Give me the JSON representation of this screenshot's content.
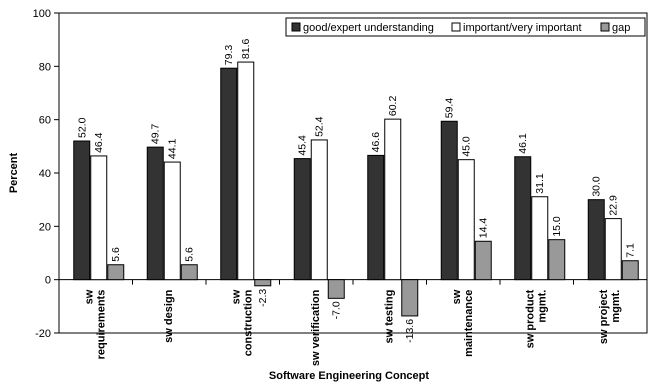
{
  "chart_data": {
    "type": "bar",
    "title": "",
    "xlabel": "Software Engineering Concept",
    "ylabel": "Percent",
    "ylim": [
      -20,
      100
    ],
    "yticks": [
      -20,
      0,
      20,
      40,
      60,
      80,
      100
    ],
    "grid": false,
    "legend_position": "top-right",
    "categories": [
      [
        "sw",
        "requirements"
      ],
      [
        "sw design"
      ],
      [
        "sw",
        "construction"
      ],
      [
        "sw verification"
      ],
      [
        "sw testing"
      ],
      [
        "sw",
        "maintenance"
      ],
      [
        "sw product",
        "mgmt."
      ],
      [
        "sw project",
        "mgmt."
      ]
    ],
    "series": [
      {
        "name": "good/expert understanding",
        "color": "#333333",
        "values": [
          52.0,
          49.7,
          79.3,
          45.4,
          46.6,
          59.4,
          46.1,
          30.0
        ]
      },
      {
        "name": "important/very important",
        "color": "#ffffff",
        "values": [
          46.4,
          44.1,
          81.6,
          52.4,
          60.2,
          45.0,
          31.1,
          22.9
        ]
      },
      {
        "name": "gap",
        "color": "#999999",
        "values": [
          5.6,
          5.6,
          -2.3,
          -7.0,
          -13.6,
          14.4,
          15.0,
          7.1
        ]
      }
    ]
  }
}
